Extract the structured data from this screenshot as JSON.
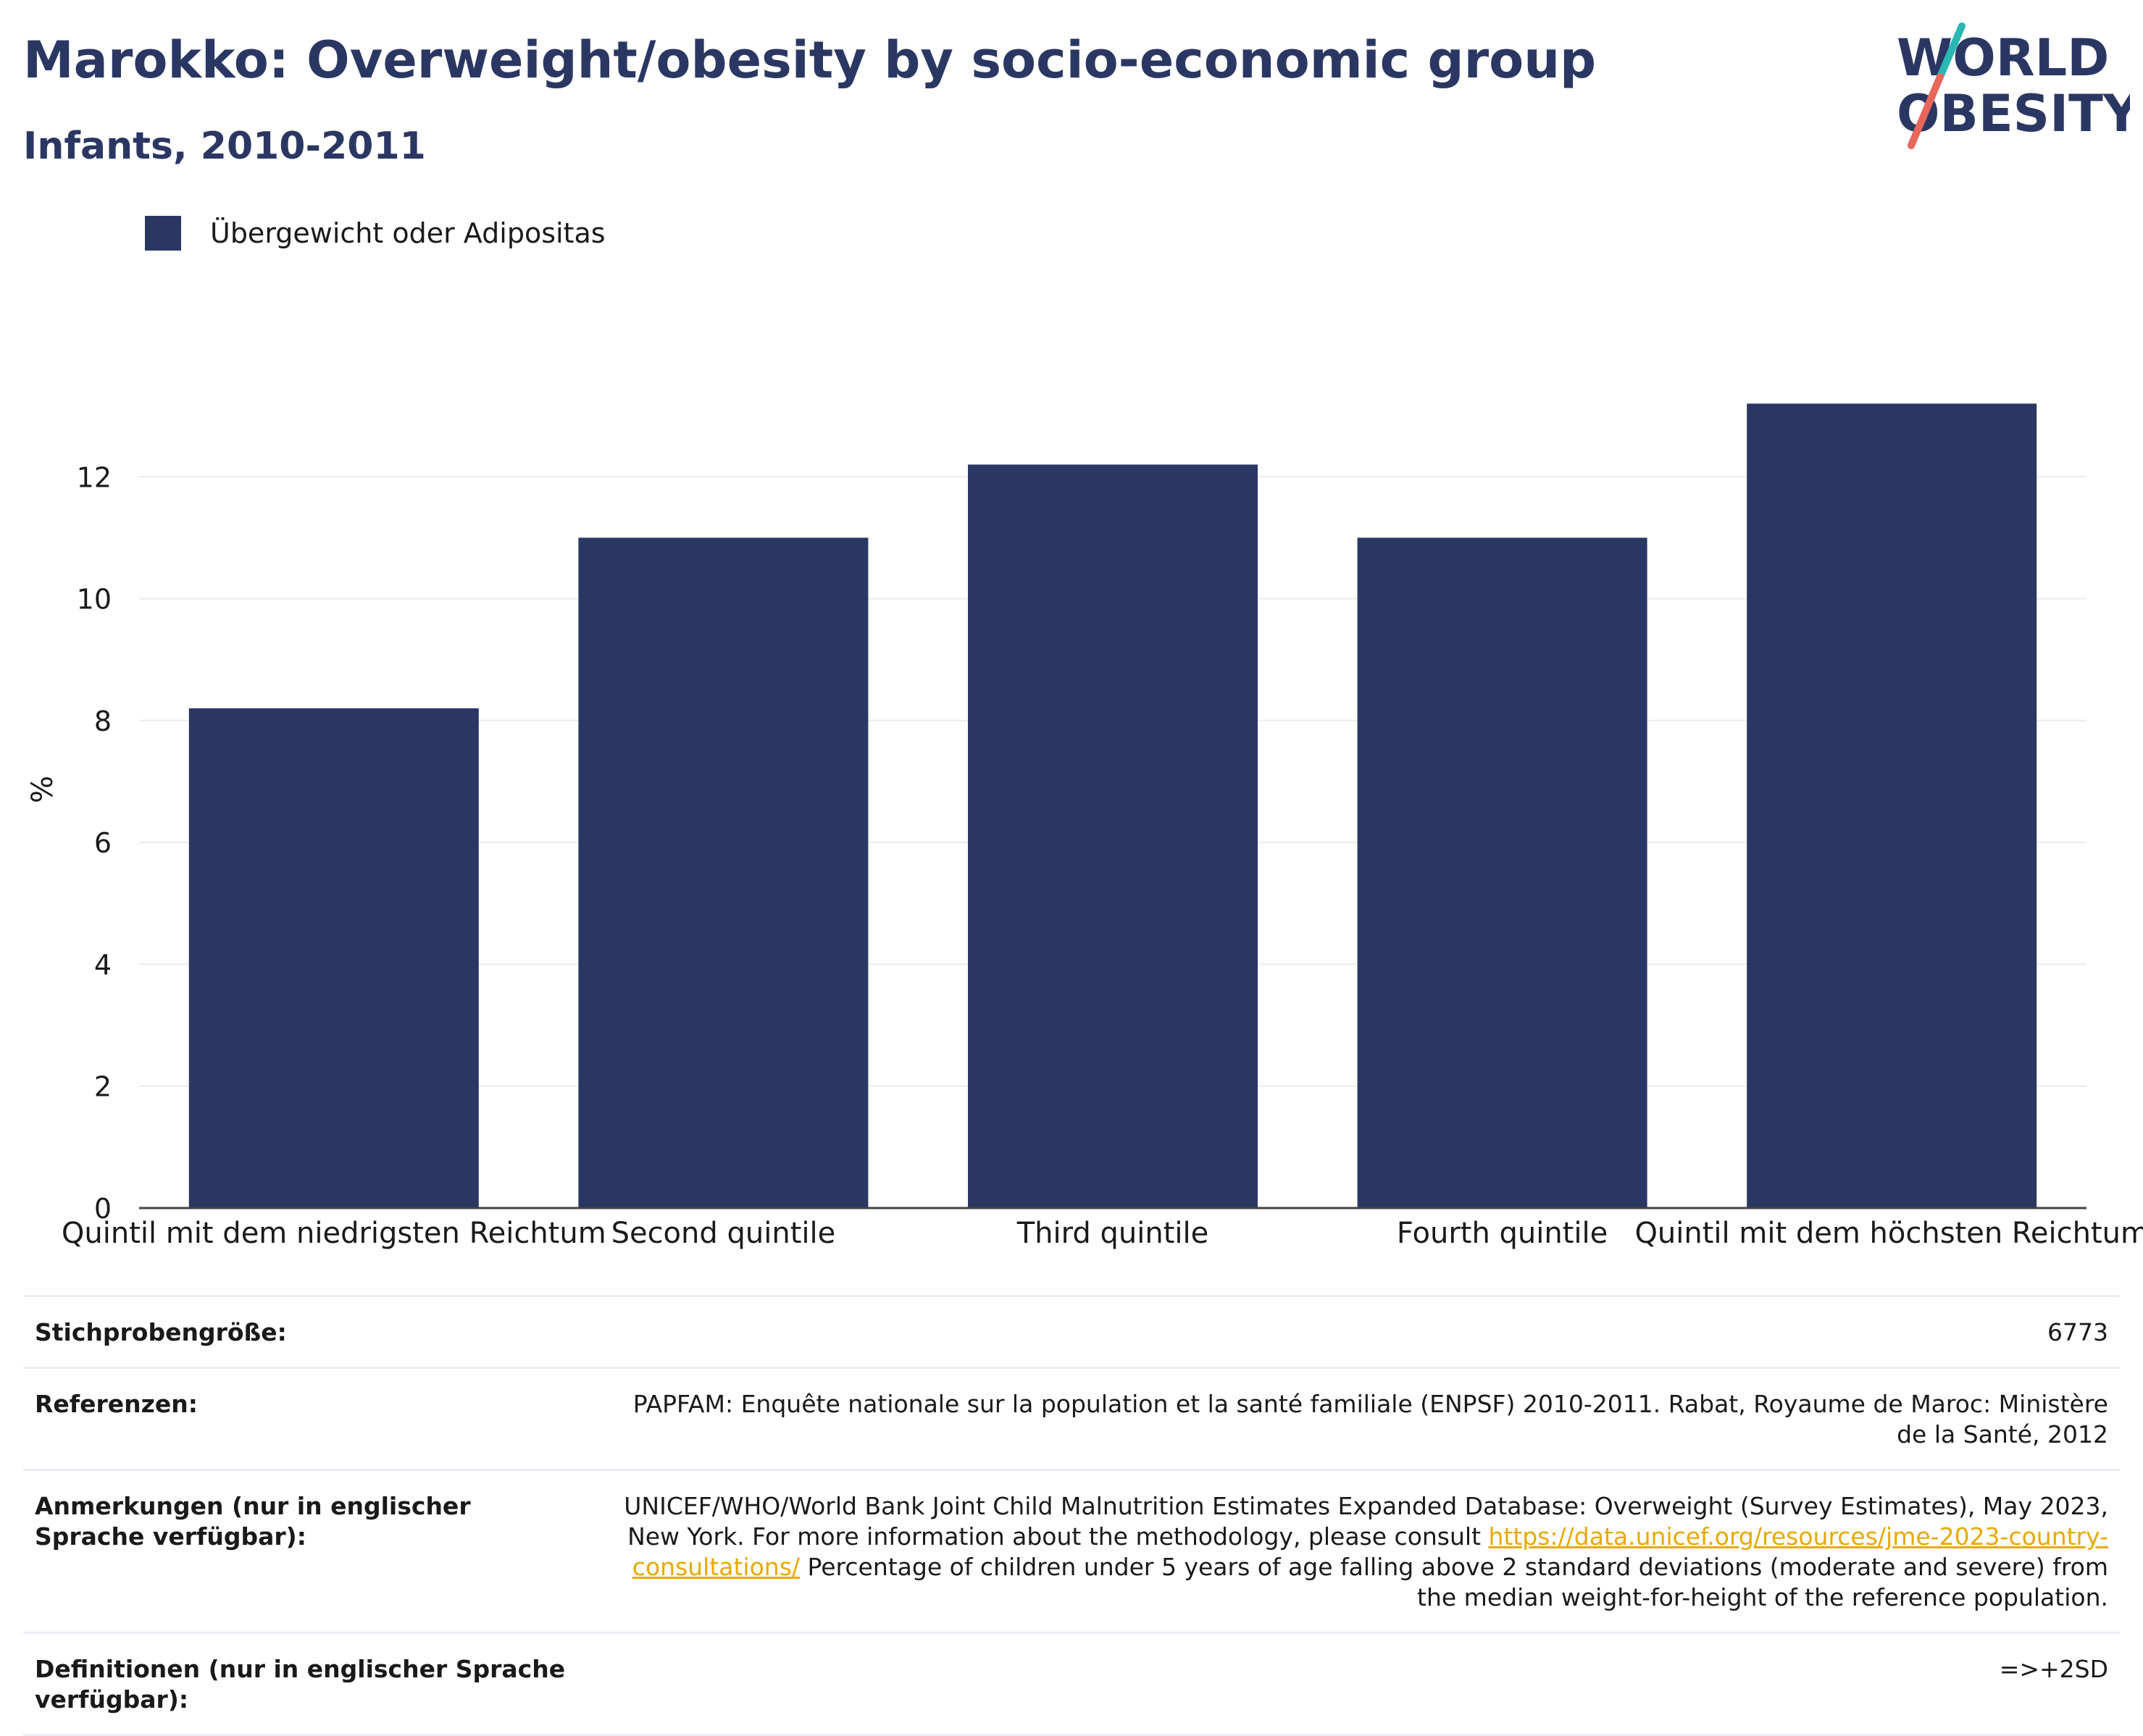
{
  "header": {
    "title": "Marokko: Overweight/obesity by socio-economic group",
    "subtitle": "Infants, 2010-2011"
  },
  "logo": {
    "line1": "WORLD",
    "line2": "OBESITY",
    "accent_colors": [
      "#2ab7b2",
      "#e8665a"
    ]
  },
  "legend": {
    "label": "Übergewicht oder Adipositas",
    "color": "#2b3763"
  },
  "chart_data": {
    "type": "bar",
    "categories": [
      "Quintil mit dem niedrigsten Reichtum",
      "Second quintile",
      "Third quintile",
      "Fourth quintile",
      "Quintil mit dem höchsten Reichtum"
    ],
    "series": [
      {
        "name": "Übergewicht oder Adipositas",
        "values": [
          8.2,
          11.0,
          12.2,
          11.0,
          13.2
        ],
        "color": "#2b3763"
      }
    ],
    "ylabel": "%",
    "ylim": [
      0,
      14
    ],
    "yticks": [
      0,
      2,
      4,
      6,
      8,
      10,
      12
    ],
    "grid": true,
    "legend_position": "top-left"
  },
  "meta": {
    "sample_size_label": "Stichprobengröße:",
    "sample_size_value": "6773",
    "references_label": "Referenzen:",
    "references_value": "PAPFAM: Enquête nationale sur la population et la santé familiale (ENPSF) 2010-2011. Rabat, Royaume de Maroc: Ministère de la Santé, 2012",
    "notes_label": "Anmerkungen (nur in englischer Sprache verfügbar):",
    "notes_text_1": "UNICEF/WHO/World Bank Joint Child Malnutrition Estimates Expanded Database: Overweight (Survey Estimates), May 2023, New York. For more information about the methodology, please consult ",
    "notes_link": "https://data.unicef.org/resources/jme-2023-country-consultations/",
    "notes_text_2": " Percentage of children under 5 years of age falling above 2 standard deviations (moderate and severe) from the median weight-for-height of the reference population.",
    "definitions_label": "Definitionen (nur in englischer Sprache verfügbar):",
    "definitions_value": "=>+2SD"
  }
}
